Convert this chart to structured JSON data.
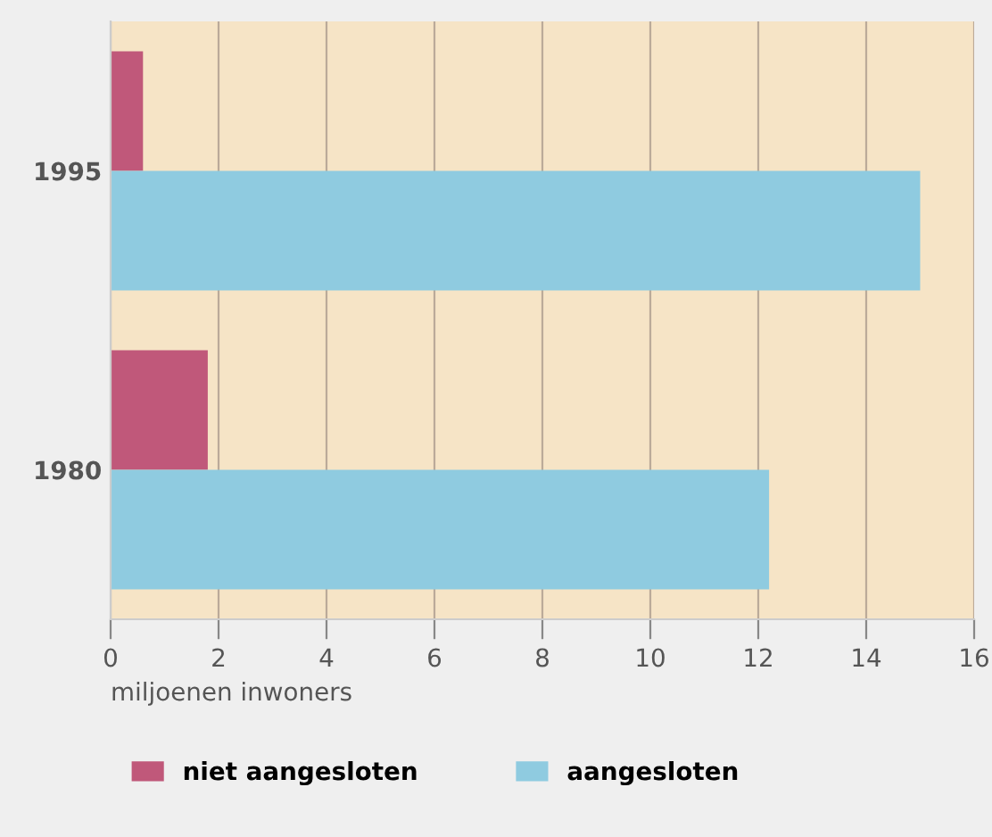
{
  "chart_data": {
    "type": "bar",
    "orientation": "horizontal",
    "categories": [
      "1995",
      "1980"
    ],
    "series": [
      {
        "name": "niet aangesloten",
        "color": "#c0587a",
        "values": [
          0.6,
          1.8
        ]
      },
      {
        "name": "aangesloten",
        "color": "#8fcbe0",
        "values": [
          15.0,
          12.2
        ]
      }
    ],
    "xlabel": "miljoenen inwoners",
    "xlim": [
      0,
      16
    ],
    "xticks": [
      0,
      2,
      4,
      6,
      8,
      10,
      12,
      14,
      16
    ],
    "grid": "x",
    "legend": "bottom"
  }
}
